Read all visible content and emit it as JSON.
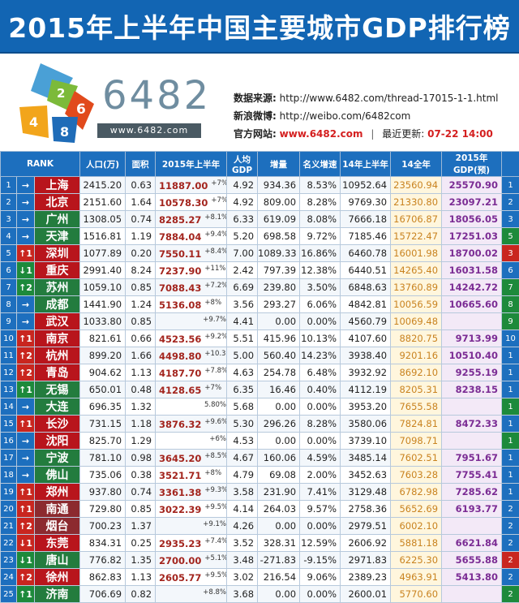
{
  "title": "2015年上半年中国主要城市GDP排行榜",
  "brand": {
    "name": "6482",
    "url": "www.6482.com",
    "logo_digits": [
      "2",
      "6",
      "4",
      "8"
    ]
  },
  "info": {
    "source_label": "数据来源:",
    "source_value": "http://www.6482.com/thread-17015-1-1.html",
    "weibo_label": "新浪微博:",
    "weibo_value": "http://weibo.com/6482com",
    "site_label": "官方网站:",
    "site_value": "www.6482.com",
    "sep": "|",
    "update_label": "最近更新:",
    "update_value": "07-22 14:00"
  },
  "columns": {
    "rank": "RANK",
    "pop": "人口(万)",
    "area": "面积",
    "gdp15h1": "2015年上半年",
    "percap": "人均GDP",
    "growth": "增量",
    "nominal": "名义增速",
    "h14": "14年上半年",
    "y14": "14全年",
    "y15": "2015年GDP(预)"
  },
  "rows": [
    {
      "i": "1",
      "c": "→",
      "t": "",
      "city": "上海",
      "cc": "",
      "pop": "2415.20",
      "area": "0.63",
      "gdp": "11887.00",
      "pct": "+7%",
      "pc": "4.92",
      "inc": "934.36",
      "nom": "8.53%",
      "h14": "10952.64",
      "y14": "23560.94",
      "y15": "25570.90",
      "e": "1",
      "et": ""
    },
    {
      "i": "2",
      "c": "→",
      "t": "",
      "city": "北京",
      "cc": "",
      "pop": "2151.60",
      "area": "1.64",
      "gdp": "10578.30",
      "pct": "+7%",
      "pc": "4.92",
      "inc": "809.00",
      "nom": "8.28%",
      "h14": "9769.30",
      "y14": "21330.80",
      "y15": "23097.21",
      "e": "2",
      "et": ""
    },
    {
      "i": "3",
      "c": "→",
      "t": "",
      "city": "广州",
      "cc": "gr",
      "pop": "1308.05",
      "area": "0.74",
      "gdp": "8285.27",
      "pct": "+8.1%",
      "pc": "6.33",
      "inc": "619.09",
      "nom": "8.08%",
      "h14": "7666.18",
      "y14": "16706.87",
      "y15": "18056.05",
      "e": "3",
      "et": ""
    },
    {
      "i": "4",
      "c": "→",
      "t": "",
      "city": "天津",
      "cc": "gr",
      "pop": "1516.81",
      "area": "1.19",
      "gdp": "7884.04",
      "pct": "+9.4%",
      "pc": "5.20",
      "inc": "698.58",
      "nom": "9.72%",
      "h14": "7185.46",
      "y14": "15722.47",
      "y15": "17251.03",
      "e": "5",
      "et": "dn"
    },
    {
      "i": "5",
      "c": "↑1",
      "t": "up",
      "city": "深圳",
      "cc": "",
      "pop": "1077.89",
      "area": "0.20",
      "gdp": "7550.11",
      "pct": "+8.4%",
      "pc": "7.00",
      "inc": "1089.33",
      "nom": "16.86%",
      "h14": "6460.78",
      "y14": "16001.98",
      "y15": "18700.02",
      "e": "3",
      "et": "up"
    },
    {
      "i": "6",
      "c": "↓1",
      "t": "dn",
      "city": "重庆",
      "cc": "",
      "pop": "2991.40",
      "area": "8.24",
      "gdp": "7237.90",
      "pct": "+11%",
      "pc": "2.42",
      "inc": "797.39",
      "nom": "12.38%",
      "h14": "6440.51",
      "y14": "14265.40",
      "y15": "16031.58",
      "e": "6",
      "et": ""
    },
    {
      "i": "7",
      "c": "↑2",
      "t": "dn",
      "city": "苏州",
      "cc": "gr",
      "pop": "1059.10",
      "area": "0.85",
      "gdp": "7088.43",
      "pct": "+7.2%",
      "pc": "6.69",
      "inc": "239.80",
      "nom": "3.50%",
      "h14": "6848.63",
      "y14": "13760.89",
      "y15": "14242.72",
      "e": "7",
      "et": "dn"
    },
    {
      "i": "8",
      "c": "→",
      "t": "",
      "city": "成都",
      "cc": "gr",
      "pop": "1441.90",
      "area": "1.24",
      "gdp": "5136.08",
      "pct": "+8%",
      "pc": "3.56",
      "inc": "293.27",
      "nom": "6.06%",
      "h14": "4842.81",
      "y14": "10056.59",
      "y15": "10665.60",
      "e": "8",
      "et": "dn"
    },
    {
      "i": "9",
      "c": "→",
      "t": "",
      "city": "武汉",
      "cc": "",
      "pop": "1033.80",
      "area": "0.85",
      "gdp": "",
      "pct": "+9.7%",
      "pc": "4.41",
      "inc": "0.00",
      "nom": "0.00%",
      "h14": "4560.79",
      "y14": "10069.48",
      "y15": "",
      "e": "9",
      "et": "dn"
    },
    {
      "i": "10",
      "c": "↑1",
      "t": "up",
      "city": "南京",
      "cc": "",
      "pop": "821.61",
      "area": "0.66",
      "gdp": "4523.56",
      "pct": "+9.2%",
      "pc": "5.51",
      "inc": "415.96",
      "nom": "10.13%",
      "h14": "4107.60",
      "y14": "8820.75",
      "y15": "9713.99",
      "e": "10",
      "et": ""
    },
    {
      "i": "11",
      "c": "↑2",
      "t": "up",
      "city": "杭州",
      "cc": "",
      "pop": "899.20",
      "area": "1.66",
      "gdp": "4498.80",
      "pct": "+10.3%",
      "pc": "5.00",
      "inc": "560.40",
      "nom": "14.23%",
      "h14": "3938.40",
      "y14": "9201.16",
      "y15": "10510.40",
      "e": "1",
      "et": ""
    },
    {
      "i": "12",
      "c": "↑2",
      "t": "up",
      "city": "青岛",
      "cc": "",
      "pop": "904.62",
      "area": "1.13",
      "gdp": "4187.70",
      "pct": "+7.8%",
      "pc": "4.63",
      "inc": "254.78",
      "nom": "6.48%",
      "h14": "3932.92",
      "y14": "8692.10",
      "y15": "9255.19",
      "e": "1",
      "et": ""
    },
    {
      "i": "13",
      "c": "↑1",
      "t": "dn",
      "city": "无锡",
      "cc": "gr",
      "pop": "650.01",
      "area": "0.48",
      "gdp": "4128.65",
      "pct": "+7%",
      "pc": "6.35",
      "inc": "16.46",
      "nom": "0.40%",
      "h14": "4112.19",
      "y14": "8205.31",
      "y15": "8238.15",
      "e": "1",
      "et": ""
    },
    {
      "i": "14",
      "c": "→",
      "t": "",
      "city": "大连",
      "cc": "gr",
      "pop": "696.35",
      "area": "1.32",
      "gdp": "",
      "pct": "5.80%",
      "pc": "5.68",
      "inc": "0.00",
      "nom": "0.00%",
      "h14": "3953.20",
      "y14": "7655.58",
      "y15": "",
      "e": "1",
      "et": "dn"
    },
    {
      "i": "15",
      "c": "↑1",
      "t": "up",
      "city": "长沙",
      "cc": "",
      "pop": "731.15",
      "area": "1.18",
      "gdp": "3876.32",
      "pct": "+9.6%",
      "pc": "5.30",
      "inc": "296.26",
      "nom": "8.28%",
      "h14": "3580.06",
      "y14": "7824.81",
      "y15": "8472.33",
      "e": "1",
      "et": ""
    },
    {
      "i": "16",
      "c": "→",
      "t": "",
      "city": "沈阳",
      "cc": "",
      "pop": "825.70",
      "area": "1.29",
      "gdp": "",
      "pct": "+6%",
      "pc": "4.53",
      "inc": "0.00",
      "nom": "0.00%",
      "h14": "3739.10",
      "y14": "7098.71",
      "y15": "",
      "e": "1",
      "et": "dn"
    },
    {
      "i": "17",
      "c": "→",
      "t": "",
      "city": "宁波",
      "cc": "gr",
      "pop": "781.10",
      "area": "0.98",
      "gdp": "3645.20",
      "pct": "+8.5%",
      "pc": "4.67",
      "inc": "160.06",
      "nom": "4.59%",
      "h14": "3485.14",
      "y14": "7602.51",
      "y15": "7951.67",
      "e": "1",
      "et": ""
    },
    {
      "i": "18",
      "c": "→",
      "t": "",
      "city": "佛山",
      "cc": "gr",
      "pop": "735.06",
      "area": "0.38",
      "gdp": "3521.71",
      "pct": "+8%",
      "pc": "4.79",
      "inc": "69.08",
      "nom": "2.00%",
      "h14": "3452.63",
      "y14": "7603.28",
      "y15": "7755.41",
      "e": "1",
      "et": ""
    },
    {
      "i": "19",
      "c": "↑1",
      "t": "up",
      "city": "郑州",
      "cc": "",
      "pop": "937.80",
      "area": "0.74",
      "gdp": "3361.38",
      "pct": "+9.3%",
      "pc": "3.58",
      "inc": "231.90",
      "nom": "7.41%",
      "h14": "3129.48",
      "y14": "6782.98",
      "y15": "7285.62",
      "e": "1",
      "et": ""
    },
    {
      "i": "20",
      "c": "↑1",
      "t": "up",
      "city": "南通",
      "cc": "ma",
      "pop": "729.80",
      "area": "0.85",
      "gdp": "3022.39",
      "pct": "+9.5%",
      "pc": "4.14",
      "inc": "264.03",
      "nom": "9.57%",
      "h14": "2758.36",
      "y14": "5652.69",
      "y15": "6193.77",
      "e": "2",
      "et": ""
    },
    {
      "i": "21",
      "c": "↑2",
      "t": "up",
      "city": "烟台",
      "cc": "ma",
      "pop": "700.23",
      "area": "1.37",
      "gdp": "",
      "pct": "+9.1%",
      "pc": "4.26",
      "inc": "0.00",
      "nom": "0.00%",
      "h14": "2979.51",
      "y14": "6002.10",
      "y15": "",
      "e": "2",
      "et": ""
    },
    {
      "i": "22",
      "c": "↓1",
      "t": "up",
      "city": "东莞",
      "cc": "",
      "pop": "834.31",
      "area": "0.25",
      "gdp": "2935.23",
      "pct": "+7.4%",
      "pc": "3.52",
      "inc": "328.31",
      "nom": "12.59%",
      "h14": "2606.92",
      "y14": "5881.18",
      "y15": "6621.84",
      "e": "2",
      "et": ""
    },
    {
      "i": "23",
      "c": "↓1",
      "t": "dn",
      "city": "唐山",
      "cc": "gr",
      "pop": "776.82",
      "area": "1.35",
      "gdp": "2700.00",
      "pct": "+5.1%",
      "pc": "3.48",
      "inc": "-271.83",
      "nom": "-9.15%",
      "h14": "2971.83",
      "y14": "6225.30",
      "y15": "5655.88",
      "e": "2",
      "et": "up"
    },
    {
      "i": "24",
      "c": "↑2",
      "t": "up",
      "city": "徐州",
      "cc": "",
      "pop": "862.83",
      "area": "1.13",
      "gdp": "2605.77",
      "pct": "+9.5%",
      "pc": "3.02",
      "inc": "216.54",
      "nom": "9.06%",
      "h14": "2389.23",
      "y14": "4963.91",
      "y15": "5413.80",
      "e": "2",
      "et": ""
    },
    {
      "i": "25",
      "c": "↑1",
      "t": "dn",
      "city": "济南",
      "cc": "gr",
      "pop": "706.69",
      "area": "0.82",
      "gdp": "",
      "pct": "+8.8%",
      "pc": "3.68",
      "inc": "0.00",
      "nom": "0.00%",
      "h14": "2600.01",
      "y14": "5770.60",
      "y15": "",
      "e": "2",
      "et": "dn"
    }
  ]
}
